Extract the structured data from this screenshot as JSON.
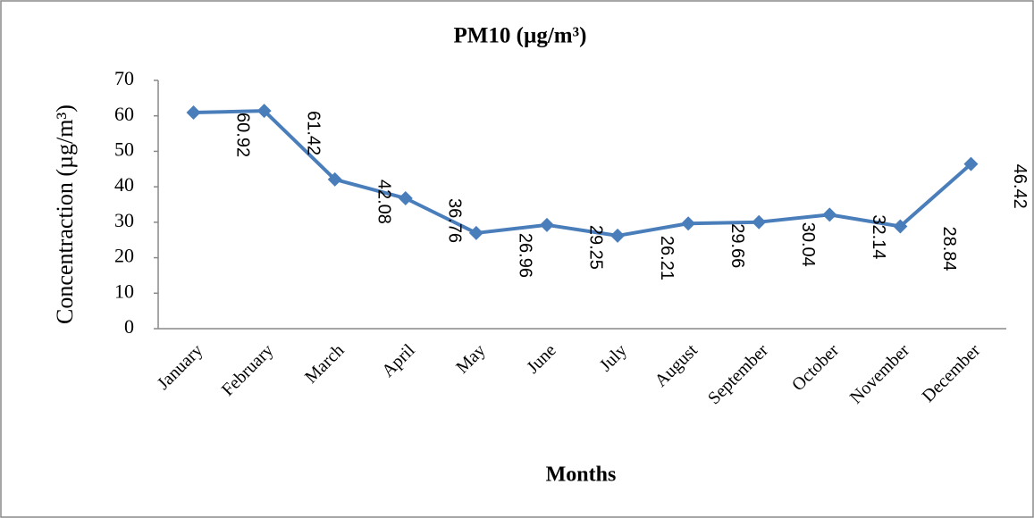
{
  "chart_data": {
    "type": "line",
    "title": "PM10 (µg/m³)",
    "x_label": "Months",
    "y_label": "Concentraction (µg/m³)",
    "categories": [
      "January",
      "February",
      "March",
      "April",
      "May",
      "June",
      "July",
      "August",
      "September",
      "October",
      "November",
      "December"
    ],
    "series": [
      {
        "name": "PM10",
        "color": "#4a7ebb",
        "values": [
          60.92,
          61.42,
          42.08,
          36.76,
          26.96,
          29.25,
          26.21,
          29.66,
          30.04,
          32.14,
          28.84,
          46.42
        ]
      }
    ],
    "ylim": [
      0,
      70
    ],
    "yticks": [
      0,
      10,
      20,
      30,
      40,
      50,
      60,
      70
    ],
    "grid": false,
    "data_labels": true
  }
}
